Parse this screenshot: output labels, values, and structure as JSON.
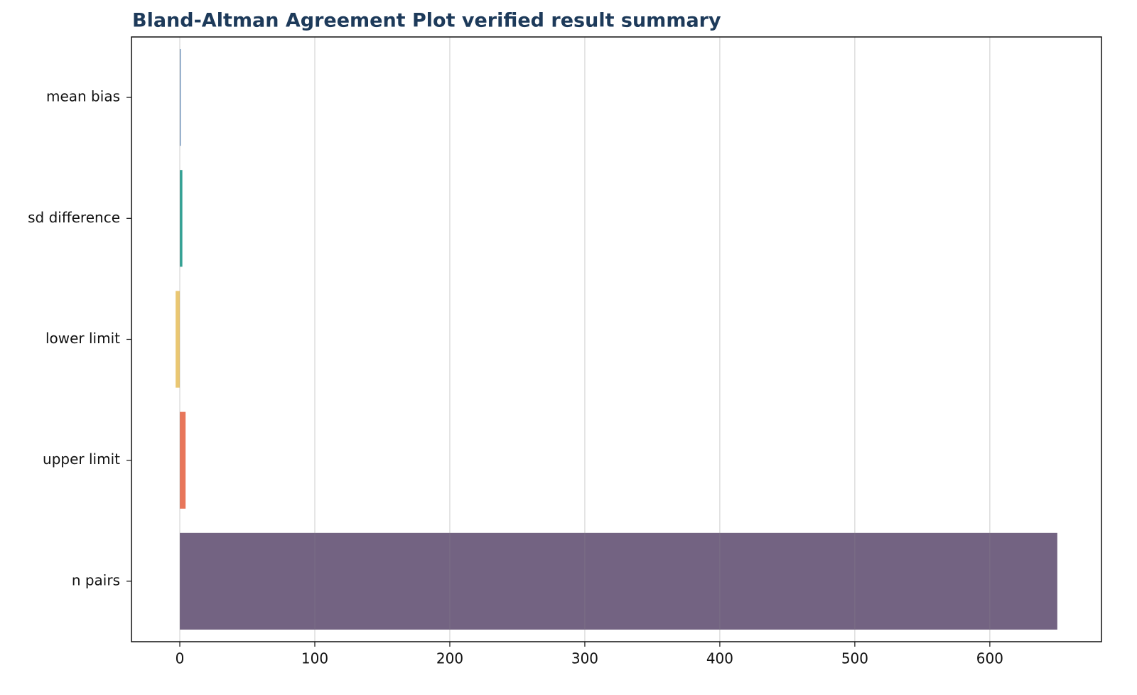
{
  "chart_data": {
    "type": "barh",
    "title": "Bland-Altman Agreement Plot verified result summary",
    "categories": [
      "mean bias",
      "sd difference",
      "lower limit",
      "upper limit",
      "n pairs"
    ],
    "values": [
      0.6,
      1.9,
      -3.1,
      4.3,
      650
    ],
    "colors": [
      "#3d6fa6",
      "#2a9d8f",
      "#e9c46a",
      "#e76f51",
      "#6c5b7b"
    ],
    "xlim": [
      -35.8,
      682.7
    ],
    "xticks": [
      0,
      100,
      200,
      300,
      400,
      500,
      600
    ],
    "grid": true
  }
}
